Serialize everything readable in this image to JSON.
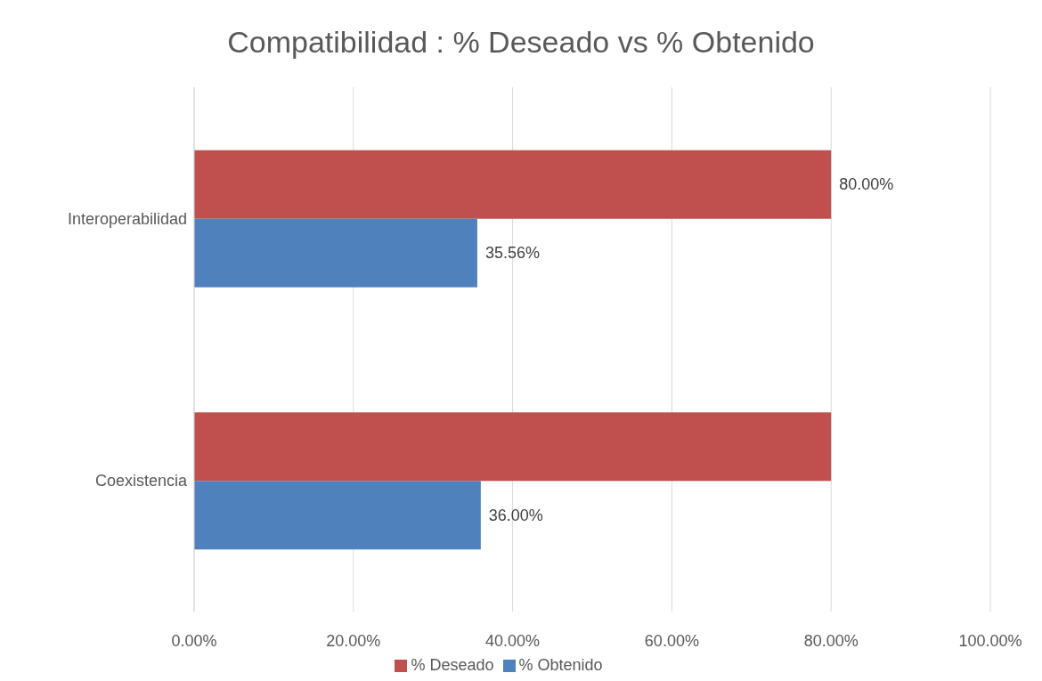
{
  "chart_data": {
    "type": "bar",
    "orientation": "horizontal",
    "title": "Compatibilidad : % Deseado vs % Obtenido",
    "categories": [
      "Interoperabilidad",
      "Coexistencia"
    ],
    "series": [
      {
        "name": "% Deseado",
        "color": "#c0504d",
        "values": [
          80,
          80
        ],
        "value_labels": [
          "80.00%",
          null
        ]
      },
      {
        "name": "% Obtenido",
        "color": "#4f81bd",
        "values": [
          35.56,
          36
        ],
        "value_labels": [
          "35.56%",
          "36.00%"
        ]
      }
    ],
    "xlim": [
      0,
      100
    ],
    "xticks": [
      {
        "value": 0,
        "label": "0.00%"
      },
      {
        "value": 20,
        "label": "20.00%"
      },
      {
        "value": 40,
        "label": "40.00%"
      },
      {
        "value": 60,
        "label": "60.00%"
      },
      {
        "value": 80,
        "label": "80.00%"
      },
      {
        "value": 100,
        "label": "100.00%"
      }
    ],
    "grid": "x",
    "legend": "bottom"
  }
}
